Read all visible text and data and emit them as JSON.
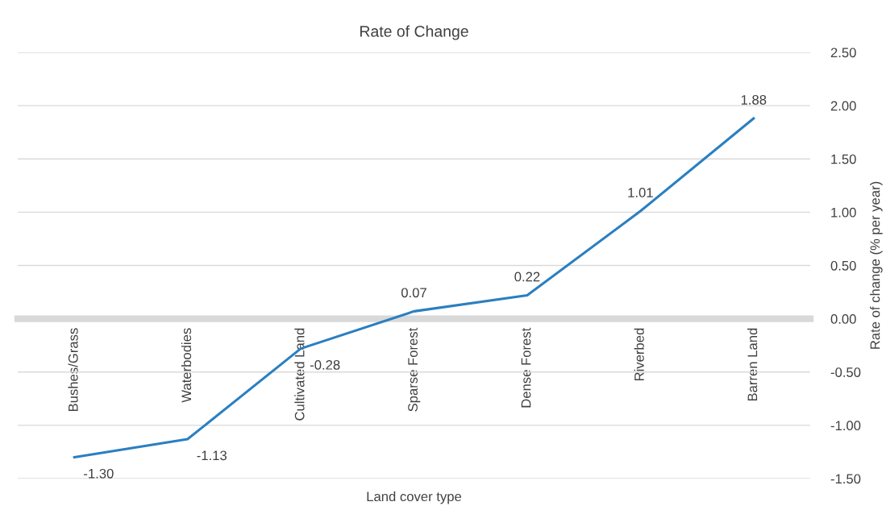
{
  "chart_data": {
    "type": "line",
    "title": "Rate of Change",
    "xlabel": "Land cover type",
    "ylabel": "Rate of change (% per year)",
    "categories": [
      "Bushes/Grass",
      "Waterbodies",
      "Cultivated Land",
      "Sparse Forest",
      "Dense Forest",
      "Riverbed",
      "Barren Land"
    ],
    "series": [
      {
        "color": "#2a7fc1",
        "values": [
          -1.3,
          -1.13,
          -0.28,
          0.07,
          0.22,
          1.01,
          1.88
        ]
      }
    ],
    "value_labels": [
      "-1.30",
      "-1.13",
      "-0.28",
      "0.07",
      "0.22",
      "1.01",
      "1.88"
    ],
    "ylim": [
      -1.5,
      2.5
    ],
    "yticks": [
      {
        "value": -1.5,
        "label": "-1.50"
      },
      {
        "value": -1.0,
        "label": "-1.00"
      },
      {
        "value": -0.5,
        "label": "-0.50"
      },
      {
        "value": 0,
        "label": "0.00"
      },
      {
        "value": 0.5,
        "label": "0.50"
      },
      {
        "value": 1.0,
        "label": "1.00"
      },
      {
        "value": 1.5,
        "label": "1.50"
      },
      {
        "value": 2.0,
        "label": "2.00"
      },
      {
        "value": 2.5,
        "label": "2.50"
      }
    ],
    "grid": "y",
    "legend": false,
    "marker": "none",
    "line_style": "solid"
  }
}
